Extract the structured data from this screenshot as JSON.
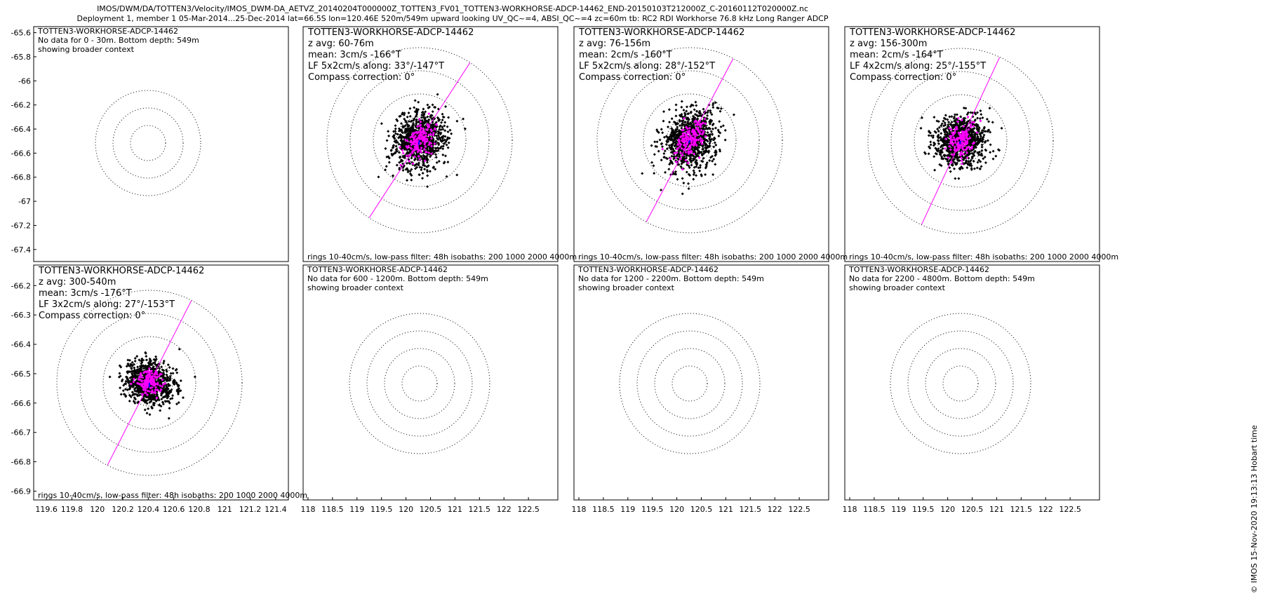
{
  "header": {
    "line1": "IMOS/DWM/DA/TOTTEN3/Velocity/IMOS_DWM-DA_AETVZ_20140204T000000Z_TOTTEN3_FV01_TOTTEN3-WORKHORSE-ADCP-14462_END-20150103T212000Z_C-20160112T020000Z.nc",
    "line2": "Deployment 1, member 1 05-Mar-2014...25-Dec-2014 lat=66.5S lon=120.46E 520m/549m upward looking UV_QC~=4, ABSI_QC~=4 zc=60m tb: RC2 RDI Workhorse 76.8 kHz Long Ranger ADCP"
  },
  "stamp": "© IMOS 15-Nov-2020 19:13:13 Hobart time",
  "colors": {
    "points": "#000000",
    "lowpass": "#ff00ff",
    "mean": "#0000ff",
    "major_axis": "#ff00ff",
    "rings": "#000000"
  },
  "chart_data": [
    {
      "type": "scatter",
      "panel": "row1-col1",
      "has_data": false,
      "lines": [
        "TOTTEN3-WORKHORSE-ADCP-14462",
        "No data for 0 - 30m. Bottom depth: 549m",
        "showing broader context"
      ],
      "footer": "",
      "center": [
        120.46,
        -66.5
      ],
      "ylim": [
        -67.5,
        -65.55
      ],
      "yticks": [
        -65.6,
        -65.8,
        -66,
        -66.2,
        -66.4,
        -66.6,
        -66.8,
        -67,
        -67.2,
        -67.4
      ],
      "yticklabels": [
        "-65.6",
        "-65.8",
        "-66",
        "-66.2",
        "-66.4",
        "-66.6",
        "-66.8",
        "-67",
        "-67.2",
        "-67.4"
      ],
      "xticks": [],
      "xticklabels": [],
      "rings": [
        0.1,
        0.2,
        0.3
      ],
      "axis": null
    },
    {
      "type": "scatter",
      "panel": "row1-col2",
      "has_data": true,
      "lines": [
        "TOTTEN3-WORKHORSE-ADCP-14462",
        "z avg: 60-76m",
        "mean: 3cm/s -166°T",
        "LF 5x2cm/s along: 33°/-147°T",
        "Compass correction: 0°"
      ],
      "footer": "rings 10-40cm/s, low-pass filter: 48h isobaths: 200 1000 2000 4000m",
      "center": [
        120.46,
        -66.5
      ],
      "yticks": [],
      "yticklabels": [],
      "xticks": [],
      "xticklabels": [],
      "rings": [
        0.1,
        0.2,
        0.3,
        0.4
      ],
      "axis": [
        33,
        0.42
      ],
      "cloud": [
        0.12,
        0.06,
        33
      ],
      "lf": [
        0.05,
        0.02,
        33
      ],
      "mean_vec": [
        3,
        -166
      ]
    },
    {
      "type": "scatter",
      "panel": "row1-col3",
      "has_data": true,
      "lines": [
        "TOTTEN3-WORKHORSE-ADCP-14462",
        "z avg: 76-156m",
        "mean: 2cm/s -160°T",
        "LF 5x2cm/s along: 28°/-152°T",
        "Compass correction: 0°"
      ],
      "footer": "rings 10-40cm/s, low-pass filter: 48h isobaths: 200 1000 2000 4000m",
      "center": [
        120.46,
        -66.5
      ],
      "yticks": [],
      "yticklabels": [],
      "xticks": [],
      "xticklabels": [],
      "rings": [
        0.1,
        0.2,
        0.3,
        0.4
      ],
      "axis": [
        28,
        0.42
      ],
      "cloud": [
        0.12,
        0.06,
        28
      ],
      "lf": [
        0.05,
        0.02,
        28
      ],
      "mean_vec": [
        2,
        -160
      ]
    },
    {
      "type": "scatter",
      "panel": "row1-col4",
      "has_data": true,
      "lines": [
        "TOTTEN3-WORKHORSE-ADCP-14462",
        "z avg: 156-300m",
        "mean: 2cm/s -164°T",
        "LF 4x2cm/s along: 25°/-155°T",
        "Compass correction: 0°"
      ],
      "footer": "rings 10-40cm/s, low-pass filter: 48h isobaths: 200 1000 2000 4000m",
      "center": [
        120.46,
        -66.5
      ],
      "yticks": [],
      "yticklabels": [],
      "xticks": [],
      "xticklabels": [],
      "rings": [
        0.1,
        0.2,
        0.3,
        0.4
      ],
      "axis": [
        25,
        0.42
      ],
      "cloud": [
        0.1,
        0.06,
        25
      ],
      "lf": [
        0.04,
        0.02,
        25
      ],
      "mean_vec": [
        2,
        -164
      ]
    },
    {
      "type": "scatter",
      "panel": "row2-col1",
      "has_data": true,
      "lines": [
        "TOTTEN3-WORKHORSE-ADCP-14462",
        "z avg: 300-540m",
        "mean: 3cm/s -176°T",
        "LF 3x2cm/s along: 27°/-153°T",
        "Compass correction: 0°"
      ],
      "footer": "rings 10-40cm/s, low-pass filter: 48h isobaths: 200 1000 2000 4000m",
      "center": [
        120.46,
        -66.5
      ],
      "ylim": [
        -66.93,
        -66.13
      ],
      "yticks": [
        -66.2,
        -66.3,
        -66.4,
        -66.5,
        -66.6,
        -66.7,
        -66.8,
        -66.9
      ],
      "yticklabels": [
        "-66.2",
        "-66.3",
        "-66.4",
        "-66.5",
        "-66.6",
        "-66.7",
        "-66.8",
        "-66.9"
      ],
      "xlim": [
        119.5,
        121.5
      ],
      "xticks": [
        119.6,
        119.8,
        120,
        120.2,
        120.4,
        120.6,
        120.8,
        121,
        121.2,
        121.4
      ],
      "xticklabels": [
        "119.6",
        "119.8",
        "120",
        "120.2",
        "120.4",
        "120.6",
        "120.8",
        "121",
        "121.2",
        "121.4"
      ],
      "rings": [
        0.1,
        0.2,
        0.3,
        0.4
      ],
      "axis": [
        27,
        0.42
      ],
      "cloud": [
        0.08,
        0.06,
        27
      ],
      "lf": [
        0.03,
        0.02,
        27
      ],
      "mean_vec": [
        3,
        -176
      ]
    },
    {
      "type": "scatter",
      "panel": "row2-col2",
      "has_data": false,
      "lines": [
        "TOTTEN3-WORKHORSE-ADCP-14462",
        "No data for 600 - 1200m. Bottom depth: 549m",
        "showing broader context"
      ],
      "footer": "",
      "center": [
        120.46,
        -66.5
      ],
      "yticks": [],
      "yticklabels": [],
      "xlim": [
        117.9,
        123.1
      ],
      "xticks": [
        118,
        118.5,
        119,
        119.5,
        120,
        120.5,
        121,
        121.5,
        122,
        122.5
      ],
      "xticklabels": [
        "118",
        "118.5",
        "119",
        "119.5",
        "120",
        "120.5",
        "121",
        "121.5",
        "122",
        "122.5"
      ],
      "rings": [
        0.1,
        0.2,
        0.3,
        0.4
      ],
      "axis": null
    },
    {
      "type": "scatter",
      "panel": "row2-col3",
      "has_data": false,
      "lines": [
        "TOTTEN3-WORKHORSE-ADCP-14462",
        "No data for 1200 - 2200m. Bottom depth: 549m",
        "showing broader context"
      ],
      "footer": "",
      "center": [
        120.46,
        -66.5
      ],
      "yticks": [],
      "yticklabels": [],
      "xlim": [
        117.9,
        123.1
      ],
      "xticks": [
        118,
        118.5,
        119,
        119.5,
        120,
        120.5,
        121,
        121.5,
        122,
        122.5
      ],
      "xticklabels": [
        "118",
        "118.5",
        "119",
        "119.5",
        "120",
        "120.5",
        "121",
        "121.5",
        "122",
        "122.5"
      ],
      "rings": [
        0.1,
        0.2,
        0.3,
        0.4
      ],
      "axis": null
    },
    {
      "type": "scatter",
      "panel": "row2-col4",
      "has_data": false,
      "lines": [
        "TOTTEN3-WORKHORSE-ADCP-14462",
        "No data for 2200 - 4800m. Bottom depth: 549m",
        "showing broader context"
      ],
      "footer": "",
      "center": [
        120.46,
        -66.5
      ],
      "yticks": [],
      "yticklabels": [],
      "xlim": [
        117.9,
        123.1
      ],
      "xticks": [
        118,
        118.5,
        119,
        119.5,
        120,
        120.5,
        121,
        121.5,
        122,
        122.5
      ],
      "xticklabels": [
        "118",
        "118.5",
        "119",
        "119.5",
        "120",
        "120.5",
        "121",
        "121.5",
        "122",
        "122.5"
      ],
      "rings": [
        0.1,
        0.2,
        0.3,
        0.4
      ],
      "axis": null
    }
  ]
}
